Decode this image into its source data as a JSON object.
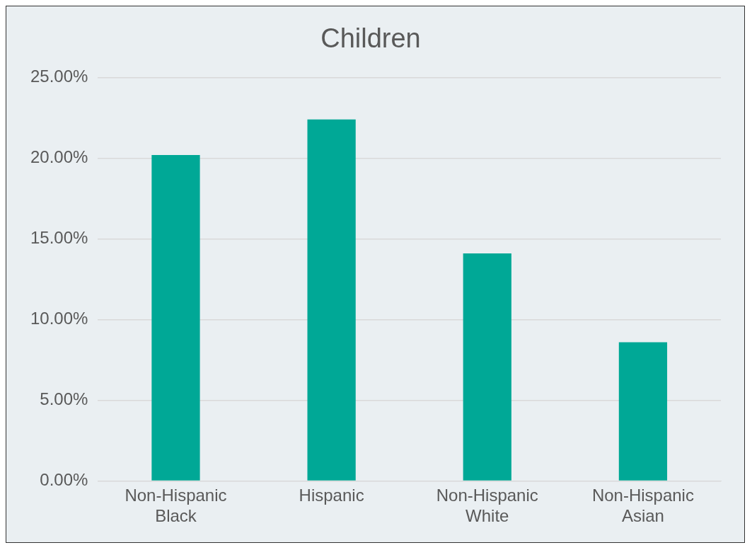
{
  "chart_data": {
    "type": "bar",
    "title": "Children",
    "categories": [
      "Non-Hispanic Black",
      "Hispanic",
      "Non-Hispanic White",
      "Non-Hispanic Asian"
    ],
    "values": [
      20.2,
      22.4,
      14.1,
      8.6
    ],
    "color": "#00a896",
    "ylim": [
      0,
      25
    ],
    "yticks": [
      {
        "value": 0,
        "label": "0.00%"
      },
      {
        "value": 5,
        "label": "5.00%"
      },
      {
        "value": 10,
        "label": "10.00%"
      },
      {
        "value": 15,
        "label": "15.00%"
      },
      {
        "value": 20,
        "label": "20.00%"
      },
      {
        "value": 25,
        "label": "25.00%"
      }
    ],
    "grid": "y",
    "legend": false
  }
}
